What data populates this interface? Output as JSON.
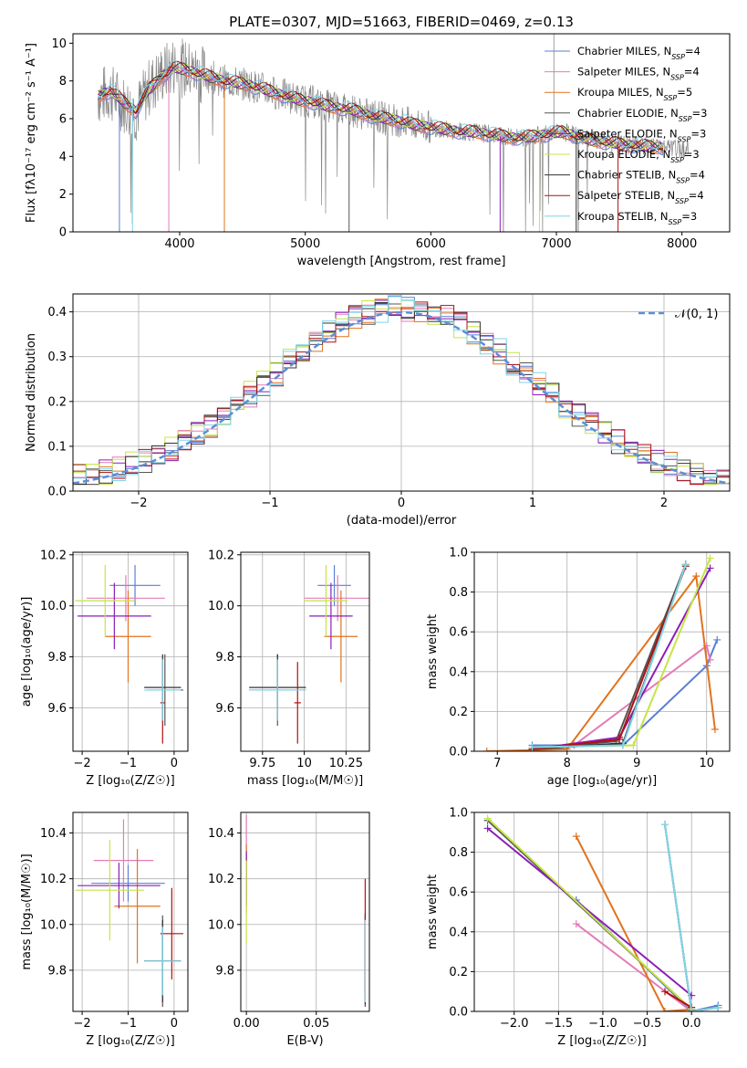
{
  "figure": {
    "title": "PLATE=0307, MJD=51663, FIBERID=0469, z=0.13"
  },
  "models": [
    {
      "name": "Chabrier MILES",
      "nssp": "4",
      "color": "#5b7fd6"
    },
    {
      "name": "Salpeter MILES",
      "nssp": "4",
      "color": "#e47bb8"
    },
    {
      "name": "Kroupa MILES",
      "nssp": "5",
      "color": "#e0731f"
    },
    {
      "name": "Chabrier ELODIE",
      "nssp": "3",
      "color": "#555555"
    },
    {
      "name": "Salpeter ELODIE",
      "nssp": "3",
      "color": "#8b1fb8"
    },
    {
      "name": "Kroupa ELODIE",
      "nssp": "3",
      "color": "#c4e645"
    },
    {
      "name": "Chabrier STELIB",
      "nssp": "4",
      "color": "#333333"
    },
    {
      "name": "Salpeter STELIB",
      "nssp": "4",
      "color": "#b01010"
    },
    {
      "name": "Kroupa STELIB",
      "nssp": "3",
      "color": "#7fd6e8"
    }
  ],
  "chart_data": [
    {
      "id": "spectrum",
      "type": "line",
      "title": "PLATE=0307, MJD=51663, FIBERID=0469, z=0.13",
      "xlabel": "wavelength [Angstrom, rest frame]",
      "ylabel": "Flux [fλ10⁻¹⁷ erg cm⁻² s⁻¹ A⁻¹]",
      "xlim": [
        3150,
        8380
      ],
      "ylim": [
        0,
        10.5
      ],
      "xticks": [
        4000,
        5000,
        6000,
        7000,
        8000
      ],
      "yticks": [
        0,
        2,
        4,
        6,
        8,
        10
      ],
      "legend": "top-right",
      "data_color": "#888888",
      "data_x": [
        3350,
        3450,
        3550,
        3650,
        3750,
        3850,
        3950,
        4050,
        4150,
        4250,
        4350,
        4450,
        4550,
        4650,
        4750,
        4850,
        4950,
        5050,
        5150,
        5250,
        5350,
        5450,
        5550,
        5650,
        5750,
        5850,
        5950,
        6050,
        6150,
        6250,
        6350,
        6450,
        6550,
        6650,
        6750,
        6850,
        6950,
        7050,
        7150,
        7250,
        7350,
        7450,
        7550,
        7650,
        7750,
        7850,
        7950,
        8050
      ],
      "data_y": [
        7.2,
        7.4,
        6.8,
        6.3,
        7.6,
        8.3,
        8.8,
        8.6,
        8.4,
        8.2,
        8.0,
        7.9,
        7.8,
        7.6,
        7.4,
        7.2,
        7.0,
        6.9,
        6.7,
        6.6,
        6.5,
        6.3,
        6.1,
        6.0,
        5.9,
        5.7,
        5.6,
        5.5,
        5.4,
        5.3,
        5.3,
        5.2,
        5.1,
        5.0,
        5.0,
        5.1,
        5.2,
        5.3,
        5.1,
        4.9,
        4.8,
        4.7,
        4.6,
        4.6,
        4.5,
        4.5,
        4.4,
        4.4
      ],
      "model_x": [
        3350,
        3450,
        3550,
        3650,
        3750,
        3850,
        3950,
        4050,
        4150,
        4250,
        4350,
        4450,
        4550,
        4650,
        4750,
        4850,
        4950,
        5050,
        5150,
        5250,
        5350,
        5450,
        5550,
        5650,
        5750,
        5850,
        5950,
        6050,
        6150,
        6250,
        6350,
        6450,
        6550,
        6650,
        6750,
        6850,
        6950,
        7050,
        7150,
        7250,
        7350,
        7450,
        7550,
        7650,
        7750,
        7850
      ],
      "model_y": [
        7.2,
        7.5,
        6.9,
        6.4,
        7.5,
        8.2,
        8.7,
        8.6,
        8.4,
        8.2,
        8.0,
        7.9,
        7.8,
        7.6,
        7.4,
        7.2,
        7.0,
        6.9,
        6.7,
        6.6,
        6.5,
        6.3,
        6.1,
        6.0,
        5.9,
        5.7,
        5.6,
        5.5,
        5.4,
        5.3,
        5.3,
        5.2,
        5.1,
        5.0,
        5.0,
        5.1,
        5.2,
        5.3,
        5.1,
        4.9,
        4.8,
        4.7,
        4.6,
        4.6,
        4.5,
        4.5
      ]
    },
    {
      "id": "residual-histogram",
      "type": "line",
      "xlabel": "(data-model)/error",
      "ylabel": "Normed distribution",
      "xlim": [
        -2.5,
        2.5
      ],
      "ylim": [
        0,
        0.44
      ],
      "xticks": [
        -2,
        -1,
        0,
        1,
        2
      ],
      "yticks": [
        0.0,
        0.1,
        0.2,
        0.3,
        0.4
      ],
      "legend": "top-right",
      "legend_label": "𝒩(0, 1)",
      "gaussian": {
        "mean": 0,
        "sigma": 1,
        "color": "#5b8fd6"
      }
    },
    {
      "id": "age-vs-Z",
      "type": "scatter",
      "xlabel": "Z [log₁₀(Z/Z☉)]",
      "ylabel": "age  [log₁₀(age/yr)]",
      "xlim": [
        -2.2,
        0.3
      ],
      "ylim": [
        9.43,
        10.21
      ],
      "xticks": [
        -2,
        -1,
        0
      ],
      "yticks": [
        9.6,
        9.8,
        10.0,
        10.2
      ],
      "points": [
        {
          "x": -0.85,
          "xerr": 0.55,
          "y": 10.08,
          "yerr": 0.08
        },
        {
          "x": -1.05,
          "xerr": 0.85,
          "y": 10.03,
          "yerr": 0.09
        },
        {
          "x": -1.0,
          "xerr": 0.5,
          "y": 9.88,
          "yerr": 0.18
        },
        {
          "x": -0.2,
          "xerr": 0.4,
          "y": 9.67,
          "yerr": 0.14
        },
        {
          "x": -1.3,
          "xerr": 0.8,
          "y": 9.96,
          "yerr": 0.13
        },
        {
          "x": -1.5,
          "xerr": 0.65,
          "y": 10.02,
          "yerr": 0.14
        },
        {
          "x": -0.25,
          "xerr": 0.4,
          "y": 9.68,
          "yerr": 0.13
        },
        {
          "x": -0.25,
          "xerr": 0.05,
          "y": 9.62,
          "yerr": 0.16
        },
        {
          "x": -0.25,
          "xerr": 0.4,
          "y": 9.67,
          "yerr": 0.12
        }
      ]
    },
    {
      "id": "age-vs-mass",
      "type": "scatter",
      "xlabel": "mass [log₁₀(M/M☉)]",
      "ylabel": "",
      "xlim": [
        9.62,
        10.39
      ],
      "ylim": [
        9.43,
        10.21
      ],
      "xticks": [
        9.75,
        10.0,
        10.25
      ],
      "yticks": [
        9.6,
        9.8,
        10.0,
        10.2
      ],
      "points": [
        {
          "x": 10.18,
          "xerr": 0.1,
          "y": 10.08,
          "yerr": 0.08
        },
        {
          "x": 10.2,
          "xerr": 0.2,
          "y": 10.03,
          "yerr": 0.09
        },
        {
          "x": 10.22,
          "xerr": 0.1,
          "y": 9.88,
          "yerr": 0.18
        },
        {
          "x": 9.84,
          "xerr": 0.17,
          "y": 9.67,
          "yerr": 0.14
        },
        {
          "x": 10.16,
          "xerr": 0.13,
          "y": 9.96,
          "yerr": 0.13
        },
        {
          "x": 10.13,
          "xerr": 0.13,
          "y": 10.02,
          "yerr": 0.14
        },
        {
          "x": 9.84,
          "xerr": 0.17,
          "y": 9.68,
          "yerr": 0.13
        },
        {
          "x": 9.96,
          "xerr": 0.02,
          "y": 9.62,
          "yerr": 0.16
        },
        {
          "x": 9.84,
          "xerr": 0.17,
          "y": 9.67,
          "yerr": 0.12
        }
      ]
    },
    {
      "id": "weight-vs-age",
      "type": "line",
      "xlabel": "age  [log₁₀(age/yr)]",
      "ylabel": "mass weight",
      "xlim": [
        6.67,
        10.33
      ],
      "ylim": [
        0,
        1
      ],
      "xticks": [
        7,
        8,
        9,
        10
      ],
      "yticks": [
        0.0,
        0.2,
        0.4,
        0.6,
        0.8,
        1.0
      ],
      "series": [
        {
          "x": [
            7.5,
            8.8,
            10.0,
            10.15
          ],
          "y": [
            0.03,
            0.03,
            0.43,
            0.56
          ]
        },
        {
          "x": [
            7.5,
            8.1,
            10.0,
            10.05
          ],
          "y": [
            0.01,
            0.03,
            0.53,
            0.46
          ]
        },
        {
          "x": [
            6.85,
            8.0,
            9.85,
            10.12
          ],
          "y": [
            0.0,
            0.01,
            0.88,
            0.11
          ]
        },
        {
          "x": [
            7.5,
            8.7,
            9.7
          ],
          "y": [
            0.01,
            0.05,
            0.94
          ]
        },
        {
          "x": [
            7.5,
            8.75,
            10.05
          ],
          "y": [
            0.01,
            0.07,
            0.92
          ]
        },
        {
          "x": [
            7.5,
            8.95,
            10.05
          ],
          "y": [
            0.02,
            0.03,
            0.97
          ]
        },
        {
          "x": [
            7.5,
            8.8,
            9.7
          ],
          "y": [
            0.01,
            0.04,
            0.94
          ]
        },
        {
          "x": [
            7.5,
            8.75,
            9.7
          ],
          "y": [
            0.01,
            0.06,
            0.93
          ]
        },
        {
          "x": [
            7.5,
            8.8,
            9.7
          ],
          "y": [
            0.02,
            0.03,
            0.94
          ]
        }
      ]
    },
    {
      "id": "mass-vs-Z",
      "type": "scatter",
      "xlabel": "Z [log₁₀(Z/Z☉)]",
      "ylabel": "mass [log₁₀(M/M☉)]",
      "xlim": [
        -2.2,
        0.3
      ],
      "ylim": [
        9.62,
        10.49
      ],
      "xticks": [
        -2,
        -1,
        0
      ],
      "yticks": [
        9.8,
        10.0,
        10.2,
        10.4
      ],
      "points": [
        {
          "x": -1.0,
          "xerr": 0.8,
          "y": 10.18,
          "yerr": 0.08
        },
        {
          "x": -1.1,
          "xerr": 0.65,
          "y": 10.28,
          "yerr": 0.18
        },
        {
          "x": -0.8,
          "xerr": 0.5,
          "y": 10.08,
          "yerr": 0.25
        },
        {
          "x": -0.25,
          "xerr": 0.4,
          "y": 9.84,
          "yerr": 0.2
        },
        {
          "x": -1.2,
          "xerr": 0.9,
          "y": 10.17,
          "yerr": 0.1
        },
        {
          "x": -1.4,
          "xerr": 0.75,
          "y": 10.15,
          "yerr": 0.22
        },
        {
          "x": -0.25,
          "xerr": 0.4,
          "y": 9.84,
          "yerr": 0.18
        },
        {
          "x": -0.05,
          "xerr": 0.25,
          "y": 9.96,
          "yerr": 0.2
        },
        {
          "x": -0.25,
          "xerr": 0.4,
          "y": 9.84,
          "yerr": 0.15
        }
      ]
    },
    {
      "id": "mass-vs-EBV",
      "type": "scatter",
      "xlabel": "E(B-V)",
      "ylabel": "",
      "xlim": [
        -0.004,
        0.088
      ],
      "ylim": [
        9.62,
        10.49
      ],
      "xticks": [
        0.0,
        0.05
      ],
      "tick_labels": [
        "0.00",
        "0.05"
      ],
      "yticks": [
        9.8,
        10.0,
        10.2,
        10.4
      ],
      "points": [
        {
          "x": 0.0,
          "xerr": 0,
          "y": 10.2,
          "yerr": 0.1
        },
        {
          "x": 0.0,
          "xerr": 0,
          "y": 10.3,
          "yerr": 0.18
        },
        {
          "x": 0.0,
          "xerr": 0,
          "y": 10.2,
          "yerr": 0.15
        },
        {
          "x": 0.085,
          "xerr": 0,
          "y": 9.84,
          "yerr": 0.2
        },
        {
          "x": 0.0,
          "xerr": 0,
          "y": 10.2,
          "yerr": 0.12
        },
        {
          "x": 0.0,
          "xerr": 0,
          "y": 10.1,
          "yerr": 0.18
        },
        {
          "x": 0.085,
          "xerr": 0,
          "y": 9.85,
          "yerr": 0.2
        },
        {
          "x": 0.085,
          "xerr": 0,
          "y": 9.95,
          "yerr": 0.25
        },
        {
          "x": 0.085,
          "xerr": 0,
          "y": 9.84,
          "yerr": 0.18
        }
      ]
    },
    {
      "id": "weight-vs-Z",
      "type": "line",
      "xlabel": "Z [log₁₀(Z/Z☉)]",
      "ylabel": "mass weight",
      "xlim": [
        -2.45,
        0.43
      ],
      "ylim": [
        0,
        1
      ],
      "xticks": [
        -2.0,
        -1.5,
        -1.0,
        -0.5,
        0.0
      ],
      "tick_labels": [
        "−2.0",
        "−1.5",
        "−1.0",
        "−0.5",
        "0.0"
      ],
      "yticks": [
        0.0,
        0.2,
        0.4,
        0.6,
        0.8,
        1.0
      ],
      "series": [
        {
          "x": [
            -1.3,
            0.0,
            0.3
          ],
          "y": [
            0.56,
            0.0,
            0.03
          ]
        },
        {
          "x": [
            -1.3,
            0.0,
            0.3
          ],
          "y": [
            0.44,
            0.0,
            0.02
          ]
        },
        {
          "x": [
            -1.3,
            -0.3,
            0.0
          ],
          "y": [
            0.88,
            0.0,
            0.01
          ]
        },
        {
          "x": [
            -2.3,
            0.0
          ],
          "y": [
            0.96,
            0.01
          ]
        },
        {
          "x": [
            -2.3,
            0.0
          ],
          "y": [
            0.92,
            0.08
          ]
        },
        {
          "x": [
            -2.3,
            0.0
          ],
          "y": [
            0.97,
            0.01
          ]
        },
        {
          "x": [
            -0.3,
            0.0,
            0.3
          ],
          "y": [
            0.94,
            0.0,
            0.02
          ]
        },
        {
          "x": [
            -0.3,
            0.0
          ],
          "y": [
            0.1,
            0.02
          ]
        },
        {
          "x": [
            -0.3,
            0.0,
            0.3
          ],
          "y": [
            0.94,
            0.0,
            0.02
          ]
        }
      ]
    }
  ]
}
